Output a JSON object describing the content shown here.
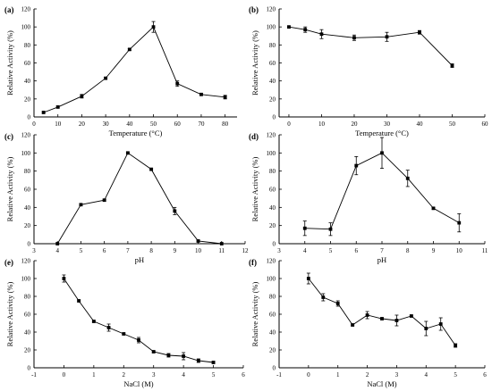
{
  "chart_data": [
    {
      "panel_label": "(a)",
      "type": "line",
      "xlabel": "Temperature (°C)",
      "ylabel": "Relative Activity (%)",
      "xlim": [
        0,
        85
      ],
      "ylim": [
        0,
        120
      ],
      "xticks": [
        0,
        10,
        20,
        30,
        40,
        50,
        60,
        70,
        80
      ],
      "yticks": [
        0,
        20,
        40,
        60,
        80,
        100,
        120
      ],
      "grid": false,
      "x": [
        4,
        10,
        20,
        30,
        40,
        50,
        60,
        70,
        80
      ],
      "y": [
        5,
        11,
        23,
        43,
        75,
        100,
        37,
        25,
        22
      ],
      "err": [
        1,
        1,
        2,
        1,
        1,
        6,
        3,
        1,
        2
      ]
    },
    {
      "panel_label": "(b)",
      "type": "line",
      "xlabel": "Temperature (°C)",
      "ylabel": "Relative Activity (%)",
      "xlim": [
        -3,
        60
      ],
      "ylim": [
        0,
        120
      ],
      "xticks": [
        0,
        10,
        20,
        30,
        40,
        50,
        60
      ],
      "yticks": [
        0,
        20,
        40,
        60,
        80,
        100,
        120
      ],
      "grid": false,
      "x": [
        0,
        5,
        10,
        20,
        30,
        40,
        50
      ],
      "y": [
        100,
        97,
        92,
        88,
        89,
        94,
        57
      ],
      "err": [
        1,
        3,
        5,
        3,
        5,
        2,
        2
      ]
    },
    {
      "panel_label": "(c)",
      "type": "line",
      "xlabel": "pH",
      "ylabel": "Relative Activity (%)",
      "xlim": [
        3,
        12
      ],
      "ylim": [
        0,
        120
      ],
      "xticks": [
        3,
        4,
        5,
        6,
        7,
        8,
        9,
        10,
        11,
        12
      ],
      "yticks": [
        0,
        20,
        40,
        60,
        80,
        100,
        120
      ],
      "grid": false,
      "x": [
        4,
        5,
        6,
        7,
        8,
        9,
        10,
        11
      ],
      "y": [
        0,
        43,
        48,
        100,
        82,
        36,
        3,
        0
      ],
      "err": [
        0,
        1,
        1,
        1,
        1,
        4,
        1,
        0
      ]
    },
    {
      "panel_label": "(d)",
      "type": "line",
      "xlabel": "pH",
      "ylabel": "Relative Activity (%)",
      "xlim": [
        3,
        11
      ],
      "ylim": [
        0,
        120
      ],
      "xticks": [
        3,
        4,
        5,
        6,
        7,
        8,
        9,
        10,
        11
      ],
      "yticks": [
        0,
        20,
        40,
        60,
        80,
        100,
        120
      ],
      "grid": false,
      "x": [
        4,
        5,
        6,
        7,
        8,
        9,
        10
      ],
      "y": [
        17,
        16,
        86,
        100,
        72,
        39,
        23
      ],
      "err": [
        8,
        7,
        10,
        17,
        9,
        1,
        10
      ]
    },
    {
      "panel_label": "(e)",
      "type": "line",
      "xlabel": "NaCl (M)",
      "ylabel": "Relative Activity (%)",
      "xlim": [
        -1,
        6
      ],
      "ylim": [
        0,
        120
      ],
      "xticks": [
        -1,
        0,
        1,
        2,
        3,
        4,
        5,
        6
      ],
      "yticks": [
        0,
        20,
        40,
        60,
        80,
        100,
        120
      ],
      "grid": false,
      "x": [
        0,
        0.5,
        1,
        1.5,
        2,
        2.5,
        3,
        3.5,
        4,
        4.5,
        5
      ],
      "y": [
        100,
        75,
        52,
        45,
        38,
        31,
        18,
        14,
        13,
        8,
        6
      ],
      "err": [
        4,
        1,
        1,
        4,
        1,
        3,
        1,
        2,
        4,
        2,
        1
      ]
    },
    {
      "panel_label": "(f)",
      "type": "line",
      "xlabel": "NaCl (M)",
      "ylabel": "Relative Activity (%)",
      "xlim": [
        -1,
        6
      ],
      "ylim": [
        0,
        120
      ],
      "xticks": [
        -1,
        0,
        1,
        2,
        3,
        4,
        5,
        6
      ],
      "yticks": [
        0,
        20,
        40,
        60,
        80,
        100,
        120
      ],
      "grid": false,
      "x": [
        0,
        0.5,
        1,
        1.5,
        2,
        2.5,
        3,
        3.5,
        4,
        4.5,
        5
      ],
      "y": [
        100,
        79,
        72,
        48,
        59,
        55,
        53,
        58,
        44,
        49,
        25
      ],
      "err": [
        6,
        4,
        3,
        1,
        4,
        1,
        6,
        1,
        8,
        7,
        2
      ]
    }
  ]
}
